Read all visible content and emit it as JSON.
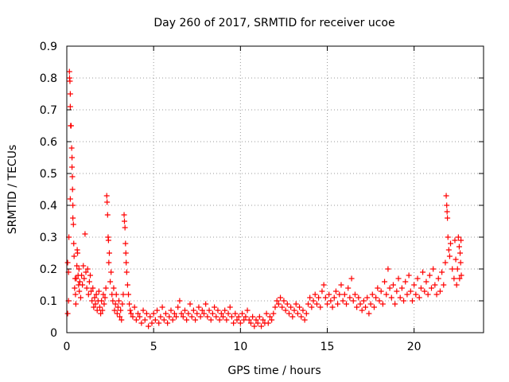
{
  "chart_data": {
    "type": "scatter",
    "title": "Day 260 of 2017, SRMTID for receiver ucoe",
    "xlabel": "GPS time / hours",
    "ylabel": "SRMTID / TECUs",
    "xlim": [
      0,
      24
    ],
    "ylim": [
      0,
      0.9
    ],
    "x_ticks": [
      0,
      5,
      10,
      15,
      20
    ],
    "x_tick_labels": [
      "0",
      "5",
      "10",
      "15",
      "20"
    ],
    "y_ticks": [
      0,
      0.1,
      0.2,
      0.3,
      0.4,
      0.5,
      0.6,
      0.7,
      0.8,
      0.9
    ],
    "y_tick_labels": [
      "0",
      "0.1",
      "0.2",
      "0.3",
      "0.4",
      "0.5",
      "0.6",
      "0.7",
      "0.8",
      "0.9"
    ],
    "grid": true,
    "marker": "+",
    "marker_color": "#ff0000",
    "series": [
      {
        "name": "SRMTID",
        "points": [
          [
            0.05,
            0.06
          ],
          [
            0.05,
            0.22
          ],
          [
            0.1,
            0.1
          ],
          [
            0.1,
            0.19
          ],
          [
            0.12,
            0.3
          ],
          [
            0.15,
            0.82
          ],
          [
            0.16,
            0.8
          ],
          [
            0.18,
            0.79
          ],
          [
            0.2,
            0.75
          ],
          [
            0.2,
            0.71
          ],
          [
            0.22,
            0.65
          ],
          [
            0.25,
            0.65
          ],
          [
            0.28,
            0.58
          ],
          [
            0.3,
            0.55
          ],
          [
            0.3,
            0.52
          ],
          [
            0.32,
            0.49
          ],
          [
            0.33,
            0.45
          ],
          [
            0.35,
            0.4
          ],
          [
            0.35,
            0.36
          ],
          [
            0.38,
            0.34
          ],
          [
            0.2,
            0.42
          ],
          [
            0.4,
            0.28
          ],
          [
            0.42,
            0.24
          ],
          [
            0.45,
            0.14
          ],
          [
            0.48,
            0.17
          ],
          [
            0.5,
            0.12
          ],
          [
            0.52,
            0.09
          ],
          [
            0.55,
            0.17
          ],
          [
            0.58,
            0.21
          ],
          [
            0.6,
            0.26
          ],
          [
            0.62,
            0.25
          ],
          [
            0.65,
            0.18
          ],
          [
            0.68,
            0.15
          ],
          [
            0.7,
            0.2
          ],
          [
            0.72,
            0.13
          ],
          [
            0.75,
            0.16
          ],
          [
            0.8,
            0.11
          ],
          [
            0.85,
            0.18
          ],
          [
            0.9,
            0.15
          ],
          [
            0.95,
            0.21
          ],
          [
            1.0,
            0.17
          ],
          [
            1.05,
            0.31
          ],
          [
            1.1,
            0.19
          ],
          [
            1.15,
            0.14
          ],
          [
            1.2,
            0.2
          ],
          [
            1.25,
            0.12
          ],
          [
            1.3,
            0.16
          ],
          [
            1.35,
            0.18
          ],
          [
            1.4,
            0.13
          ],
          [
            1.45,
            0.1
          ],
          [
            1.5,
            0.14
          ],
          [
            1.55,
            0.08
          ],
          [
            1.6,
            0.11
          ],
          [
            1.65,
            0.09
          ],
          [
            1.7,
            0.12
          ],
          [
            1.75,
            0.07
          ],
          [
            1.8,
            0.1
          ],
          [
            1.85,
            0.13
          ],
          [
            1.9,
            0.08
          ],
          [
            1.95,
            0.06
          ],
          [
            2.0,
            0.1
          ],
          [
            2.05,
            0.07
          ],
          [
            2.1,
            0.12
          ],
          [
            2.15,
            0.09
          ],
          [
            2.2,
            0.11
          ],
          [
            2.25,
            0.14
          ],
          [
            2.3,
            0.43
          ],
          [
            2.32,
            0.41
          ],
          [
            2.35,
            0.37
          ],
          [
            2.38,
            0.3
          ],
          [
            2.4,
            0.29
          ],
          [
            2.42,
            0.22
          ],
          [
            2.45,
            0.25
          ],
          [
            2.5,
            0.16
          ],
          [
            2.55,
            0.19
          ],
          [
            2.6,
            0.12
          ],
          [
            2.65,
            0.1
          ],
          [
            2.7,
            0.14
          ],
          [
            2.75,
            0.07
          ],
          [
            2.8,
            0.09
          ],
          [
            2.85,
            0.12
          ],
          [
            2.9,
            0.06
          ],
          [
            2.95,
            0.08
          ],
          [
            3.0,
            0.1
          ],
          [
            3.05,
            0.05
          ],
          [
            3.1,
            0.07
          ],
          [
            3.15,
            0.04
          ],
          [
            3.2,
            0.09
          ],
          [
            3.25,
            0.12
          ],
          [
            3.3,
            0.37
          ],
          [
            3.32,
            0.35
          ],
          [
            3.35,
            0.33
          ],
          [
            3.38,
            0.28
          ],
          [
            3.4,
            0.25
          ],
          [
            3.42,
            0.22
          ],
          [
            3.45,
            0.19
          ],
          [
            3.5,
            0.15
          ],
          [
            3.55,
            0.12
          ],
          [
            3.6,
            0.09
          ],
          [
            3.65,
            0.07
          ],
          [
            3.7,
            0.06
          ],
          [
            3.8,
            0.05
          ],
          [
            3.9,
            0.08
          ],
          [
            4.0,
            0.04
          ],
          [
            4.1,
            0.06
          ],
          [
            4.2,
            0.05
          ],
          [
            4.3,
            0.03
          ],
          [
            4.4,
            0.07
          ],
          [
            4.5,
            0.04
          ],
          [
            4.6,
            0.06
          ],
          [
            4.7,
            0.02
          ],
          [
            4.8,
            0.05
          ],
          [
            4.9,
            0.03
          ],
          [
            5.0,
            0.06
          ],
          [
            5.1,
            0.04
          ],
          [
            5.2,
            0.07
          ],
          [
            5.3,
            0.03
          ],
          [
            5.4,
            0.05
          ],
          [
            5.5,
            0.08
          ],
          [
            5.6,
            0.04
          ],
          [
            5.7,
            0.06
          ],
          [
            5.8,
            0.03
          ],
          [
            5.9,
            0.05
          ],
          [
            6.0,
            0.07
          ],
          [
            6.1,
            0.04
          ],
          [
            6.2,
            0.06
          ],
          [
            6.3,
            0.05
          ],
          [
            6.4,
            0.08
          ],
          [
            6.5,
            0.1
          ],
          [
            6.6,
            0.06
          ],
          [
            6.7,
            0.05
          ],
          [
            6.8,
            0.07
          ],
          [
            6.9,
            0.04
          ],
          [
            7.0,
            0.06
          ],
          [
            7.1,
            0.09
          ],
          [
            7.2,
            0.05
          ],
          [
            7.3,
            0.07
          ],
          [
            7.4,
            0.04
          ],
          [
            7.5,
            0.06
          ],
          [
            7.6,
            0.08
          ],
          [
            7.7,
            0.05
          ],
          [
            7.8,
            0.07
          ],
          [
            7.9,
            0.06
          ],
          [
            8.0,
            0.09
          ],
          [
            8.1,
            0.05
          ],
          [
            8.2,
            0.07
          ],
          [
            8.3,
            0.04
          ],
          [
            8.4,
            0.06
          ],
          [
            8.5,
            0.08
          ],
          [
            8.6,
            0.05
          ],
          [
            8.7,
            0.07
          ],
          [
            8.8,
            0.04
          ],
          [
            8.9,
            0.06
          ],
          [
            9.0,
            0.05
          ],
          [
            9.1,
            0.07
          ],
          [
            9.2,
            0.04
          ],
          [
            9.3,
            0.06
          ],
          [
            9.4,
            0.08
          ],
          [
            9.5,
            0.05
          ],
          [
            9.6,
            0.03
          ],
          [
            9.7,
            0.06
          ],
          [
            9.8,
            0.04
          ],
          [
            9.9,
            0.05
          ],
          [
            10.0,
            0.03
          ],
          [
            10.1,
            0.06
          ],
          [
            10.2,
            0.04
          ],
          [
            10.3,
            0.05
          ],
          [
            10.4,
            0.07
          ],
          [
            10.5,
            0.04
          ],
          [
            10.6,
            0.03
          ],
          [
            10.7,
            0.05
          ],
          [
            10.8,
            0.02
          ],
          [
            10.9,
            0.04
          ],
          [
            11.0,
            0.03
          ],
          [
            11.1,
            0.05
          ],
          [
            11.2,
            0.02
          ],
          [
            11.3,
            0.04
          ],
          [
            11.4,
            0.03
          ],
          [
            11.5,
            0.06
          ],
          [
            11.6,
            0.03
          ],
          [
            11.7,
            0.05
          ],
          [
            11.8,
            0.04
          ],
          [
            11.9,
            0.06
          ],
          [
            12.0,
            0.08
          ],
          [
            12.1,
            0.1
          ],
          [
            12.2,
            0.09
          ],
          [
            12.3,
            0.11
          ],
          [
            12.4,
            0.08
          ],
          [
            12.5,
            0.1
          ],
          [
            12.6,
            0.07
          ],
          [
            12.7,
            0.09
          ],
          [
            12.8,
            0.06
          ],
          [
            12.9,
            0.08
          ],
          [
            13.0,
            0.05
          ],
          [
            13.1,
            0.07
          ],
          [
            13.2,
            0.09
          ],
          [
            13.3,
            0.06
          ],
          [
            13.4,
            0.08
          ],
          [
            13.5,
            0.05
          ],
          [
            13.6,
            0.07
          ],
          [
            13.7,
            0.04
          ],
          [
            13.8,
            0.06
          ],
          [
            13.9,
            0.09
          ],
          [
            14.0,
            0.11
          ],
          [
            14.1,
            0.08
          ],
          [
            14.2,
            0.1
          ],
          [
            14.3,
            0.12
          ],
          [
            14.4,
            0.09
          ],
          [
            14.5,
            0.11
          ],
          [
            14.6,
            0.08
          ],
          [
            14.7,
            0.13
          ],
          [
            14.8,
            0.15
          ],
          [
            14.9,
            0.11
          ],
          [
            15.0,
            0.09
          ],
          [
            15.1,
            0.12
          ],
          [
            15.2,
            0.1
          ],
          [
            15.3,
            0.08
          ],
          [
            15.4,
            0.11
          ],
          [
            15.5,
            0.13
          ],
          [
            15.6,
            0.09
          ],
          [
            15.7,
            0.12
          ],
          [
            15.8,
            0.15
          ],
          [
            15.9,
            0.1
          ],
          [
            16.0,
            0.12
          ],
          [
            16.1,
            0.09
          ],
          [
            16.2,
            0.14
          ],
          [
            16.3,
            0.11
          ],
          [
            16.4,
            0.17
          ],
          [
            16.5,
            0.1
          ],
          [
            16.6,
            0.12
          ],
          [
            16.7,
            0.08
          ],
          [
            16.8,
            0.11
          ],
          [
            16.9,
            0.09
          ],
          [
            17.0,
            0.07
          ],
          [
            17.1,
            0.1
          ],
          [
            17.2,
            0.08
          ],
          [
            17.3,
            0.11
          ],
          [
            17.4,
            0.06
          ],
          [
            17.5,
            0.09
          ],
          [
            17.6,
            0.12
          ],
          [
            17.7,
            0.08
          ],
          [
            17.8,
            0.11
          ],
          [
            17.9,
            0.14
          ],
          [
            18.0,
            0.1
          ],
          [
            18.1,
            0.13
          ],
          [
            18.2,
            0.09
          ],
          [
            18.3,
            0.16
          ],
          [
            18.4,
            0.12
          ],
          [
            18.5,
            0.2
          ],
          [
            18.6,
            0.14
          ],
          [
            18.7,
            0.11
          ],
          [
            18.8,
            0.15
          ],
          [
            18.9,
            0.09
          ],
          [
            19.0,
            0.13
          ],
          [
            19.1,
            0.17
          ],
          [
            19.2,
            0.11
          ],
          [
            19.3,
            0.14
          ],
          [
            19.4,
            0.1
          ],
          [
            19.5,
            0.16
          ],
          [
            19.6,
            0.12
          ],
          [
            19.7,
            0.18
          ],
          [
            19.8,
            0.13
          ],
          [
            19.9,
            0.1
          ],
          [
            20.0,
            0.15
          ],
          [
            20.1,
            0.12
          ],
          [
            20.2,
            0.17
          ],
          [
            20.3,
            0.11
          ],
          [
            20.4,
            0.14
          ],
          [
            20.5,
            0.19
          ],
          [
            20.6,
            0.13
          ],
          [
            20.7,
            0.16
          ],
          [
            20.8,
            0.12
          ],
          [
            20.9,
            0.18
          ],
          [
            21.0,
            0.14
          ],
          [
            21.1,
            0.2
          ],
          [
            21.2,
            0.15
          ],
          [
            21.3,
            0.12
          ],
          [
            21.4,
            0.17
          ],
          [
            21.5,
            0.13
          ],
          [
            21.6,
            0.19
          ],
          [
            21.7,
            0.15
          ],
          [
            21.8,
            0.22
          ],
          [
            21.85,
            0.43
          ],
          [
            21.88,
            0.4
          ],
          [
            21.9,
            0.38
          ],
          [
            21.92,
            0.36
          ],
          [
            21.95,
            0.3
          ],
          [
            22.0,
            0.26
          ],
          [
            22.05,
            0.24
          ],
          [
            22.1,
            0.28
          ],
          [
            22.2,
            0.2
          ],
          [
            22.3,
            0.17
          ],
          [
            22.35,
            0.29
          ],
          [
            22.4,
            0.23
          ],
          [
            22.45,
            0.15
          ],
          [
            22.5,
            0.2
          ],
          [
            22.55,
            0.3
          ],
          [
            22.6,
            0.27
          ],
          [
            22.62,
            0.17
          ],
          [
            22.65,
            0.25
          ],
          [
            22.68,
            0.22
          ],
          [
            22.7,
            0.29
          ],
          [
            22.72,
            0.18
          ]
        ]
      }
    ]
  }
}
